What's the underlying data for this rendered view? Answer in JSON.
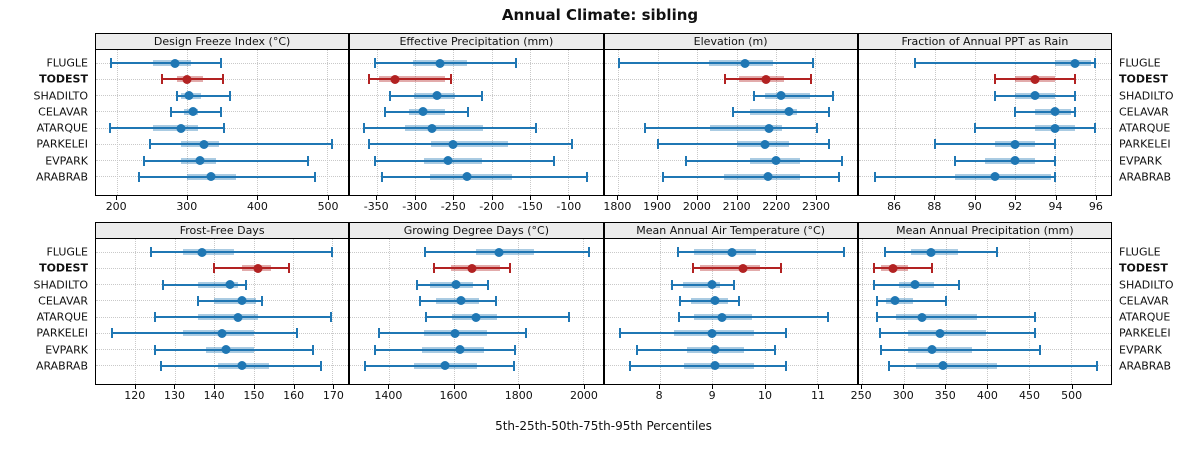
{
  "colors": {
    "accent_blue": "#1f77b4",
    "accent_red": "#b22222",
    "grid": "#c9c9c9",
    "strip_bg": "#ececec",
    "panel_border": "#000000"
  },
  "chart_data": {
    "type": "scatter",
    "subtype": "percentile-dotplot-lattice",
    "title": "Annual Climate: sibling",
    "xlabel": "5th-25th-50th-75th-95th Percentiles",
    "legend_position": "none",
    "grid": "dotted",
    "stations": [
      "FLUGLE",
      "TODEST",
      "SHADILTO",
      "CELAVAR",
      "ATARQUE",
      "PARKELEI",
      "EVPARK",
      "ARABRAB"
    ],
    "highlight_station": "TODEST",
    "percentile_levels": [
      5,
      25,
      50,
      75,
      95
    ],
    "panels": [
      {
        "title": "Design Freeze Index (°C)",
        "row": 0,
        "xlim": [
          170,
          530
        ],
        "ticks": [
          200,
          300,
          400,
          500
        ],
        "values": [
          [
            192,
            252,
            283,
            306,
            349
          ],
          [
            264,
            285,
            300,
            322,
            351
          ],
          [
            286,
            292,
            303,
            320,
            361
          ],
          [
            277,
            295,
            308,
            316,
            348
          ],
          [
            190,
            252,
            291,
            315,
            352
          ],
          [
            247,
            292,
            324,
            345,
            507
          ],
          [
            239,
            292,
            319,
            341,
            473
          ],
          [
            232,
            300,
            334,
            370,
            482
          ]
        ]
      },
      {
        "title": "Effective Precipitation (mm)",
        "row": 0,
        "xlim": [
          -385,
          -55
        ],
        "ticks": [
          -350,
          -300,
          -250,
          -200,
          -150,
          -100
        ],
        "values": [
          [
            -352,
            -303,
            -268,
            -232,
            -168
          ],
          [
            -361,
            -347,
            -326,
            -261,
            -253
          ],
          [
            -333,
            -302,
            -272,
            -248,
            -212
          ],
          [
            -339,
            -308,
            -290,
            -261,
            -231
          ],
          [
            -367,
            -314,
            -278,
            -211,
            -142
          ],
          [
            -361,
            -279,
            -250,
            -179,
            -95
          ],
          [
            -353,
            -289,
            -257,
            -213,
            -119
          ],
          [
            -343,
            -281,
            -232,
            -174,
            -75
          ]
        ]
      },
      {
        "title": "Elevation (m)",
        "row": 0,
        "xlim": [
          1765,
          2405
        ],
        "ticks": [
          1800,
          1900,
          2000,
          2100,
          2200,
          2300
        ],
        "values": [
          [
            1802,
            2030,
            2122,
            2192,
            2293
          ],
          [
            2071,
            2105,
            2174,
            2220,
            2288
          ],
          [
            2145,
            2172,
            2212,
            2286,
            2345
          ],
          [
            2090,
            2134,
            2232,
            2253,
            2334
          ],
          [
            1868,
            2033,
            2182,
            2215,
            2305
          ],
          [
            1902,
            2100,
            2171,
            2234,
            2335
          ],
          [
            1972,
            2133,
            2199,
            2260,
            2368
          ],
          [
            1914,
            2067,
            2180,
            2260,
            2360
          ]
        ]
      },
      {
        "title": "Fraction of Annual PPT as Rain",
        "row": 0,
        "xlim": [
          84.2,
          96.8
        ],
        "ticks": [
          86,
          88,
          90,
          92,
          94,
          96
        ],
        "values": [
          [
            87,
            94,
            95,
            95.8,
            96
          ],
          [
            91,
            92,
            93,
            94,
            95
          ],
          [
            91,
            92,
            93,
            94,
            95
          ],
          [
            92,
            93,
            94,
            94.8,
            95
          ],
          [
            90,
            93,
            94,
            95,
            96
          ],
          [
            88,
            91,
            92,
            93,
            94
          ],
          [
            89,
            90.5,
            92,
            93,
            94
          ],
          [
            85,
            89,
            91,
            93.8,
            94
          ]
        ]
      },
      {
        "title": "Frost-Free Days",
        "row": 1,
        "xlim": [
          110,
          174
        ],
        "ticks": [
          120,
          130,
          140,
          150,
          160,
          170
        ],
        "values": [
          [
            124,
            132,
            137,
            145,
            170
          ],
          [
            140,
            147,
            151,
            154.5,
            159
          ],
          [
            127,
            136,
            144,
            146,
            148
          ],
          [
            136,
            140,
            147,
            150.5,
            152
          ],
          [
            125,
            136,
            146,
            151,
            169.5
          ],
          [
            114,
            132,
            142,
            150,
            161
          ],
          [
            125,
            138,
            143,
            150,
            165
          ],
          [
            126.5,
            141,
            147,
            154,
            167
          ]
        ]
      },
      {
        "title": "Growing Degree Days (°C)",
        "row": 1,
        "xlim": [
          1280,
          2060
        ],
        "ticks": [
          1400,
          1600,
          1800,
          2000
        ],
        "values": [
          [
            1510,
            1670,
            1740,
            1848,
            2018
          ],
          [
            1540,
            1590,
            1655,
            1742,
            1775
          ],
          [
            1485,
            1528,
            1606,
            1660,
            1705
          ],
          [
            1495,
            1545,
            1622,
            1678,
            1730
          ],
          [
            1513,
            1596,
            1668,
            1735,
            1955
          ],
          [
            1370,
            1508,
            1604,
            1704,
            1823
          ],
          [
            1357,
            1503,
            1620,
            1694,
            1790
          ],
          [
            1326,
            1477,
            1573,
            1673,
            1787
          ]
        ]
      },
      {
        "title": "Mean Annual Air Temperature (°C)",
        "row": 1,
        "xlim": [
          6.95,
          11.75
        ],
        "ticks": [
          8,
          9,
          10,
          11
        ],
        "values": [
          [
            8.35,
            8.66,
            9.37,
            9.83,
            11.5
          ],
          [
            8.63,
            8.77,
            9.58,
            9.9,
            10.3
          ],
          [
            8.24,
            8.44,
            9.0,
            9.14,
            9.41
          ],
          [
            8.38,
            8.6,
            9.05,
            9.3,
            9.5
          ],
          [
            8.36,
            8.66,
            9.19,
            9.75,
            11.2
          ],
          [
            7.25,
            8.28,
            9.0,
            9.8,
            10.4
          ],
          [
            7.56,
            8.52,
            9.06,
            9.6,
            10.2
          ],
          [
            7.43,
            8.47,
            9.05,
            9.8,
            10.4
          ]
        ]
      },
      {
        "title": "Mean Annual Precipitation (mm)",
        "row": 1,
        "xlim": [
          246,
          548
        ],
        "ticks": [
          250,
          300,
          350,
          400,
          450,
          500
        ],
        "values": [
          [
            278,
            309,
            333,
            365,
            411
          ],
          [
            264,
            273,
            287,
            305,
            334
          ],
          [
            264,
            294,
            313,
            336,
            366
          ],
          [
            268,
            279,
            289,
            311,
            350
          ],
          [
            268,
            291,
            322,
            387,
            457
          ],
          [
            271,
            305,
            343,
            398,
            457
          ],
          [
            273,
            305,
            334,
            382,
            463
          ],
          [
            282,
            315,
            347,
            411,
            531
          ]
        ]
      }
    ]
  }
}
